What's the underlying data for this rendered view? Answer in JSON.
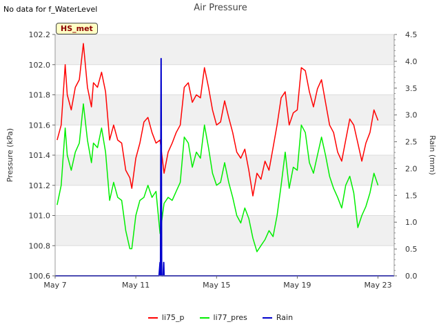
{
  "header": {
    "no_data_text": "No data for f_WaterLevel",
    "badge_text": "HS_met"
  },
  "chart_data": {
    "type": "line",
    "title": "Air Pressure",
    "xlabel": "",
    "ylabel": "Pressure (kPa)",
    "y2label": "Rain (mm)",
    "xlim": [
      7,
      23.8
    ],
    "ylim": [
      100.6,
      102.2
    ],
    "y2lim": [
      0.0,
      4.5
    ],
    "xticks": [
      7,
      11,
      15,
      19,
      23
    ],
    "xtick_labels": [
      "May 7",
      "May 11",
      "May 15",
      "May 19",
      "May 23"
    ],
    "yticks": [
      100.6,
      100.8,
      101.0,
      101.2,
      101.4,
      101.6,
      101.8,
      102.0,
      102.2
    ],
    "ytick_labels": [
      "100.6",
      "100.8",
      "101.0",
      "101.2",
      "101.4",
      "101.6",
      "101.8",
      "102.0",
      "102.2"
    ],
    "y2ticks": [
      0.0,
      0.5,
      1.0,
      1.5,
      2.0,
      2.5,
      3.0,
      3.5,
      4.0,
      4.5
    ],
    "y2tick_labels": [
      "0.0",
      "0.5",
      "1.0",
      "1.5",
      "2.0",
      "2.5",
      "3.0",
      "3.5",
      "4.0",
      "4.5"
    ],
    "legend": [
      "li75_p",
      "li77_pres",
      "Rain"
    ],
    "series": [
      {
        "name": "li75_p",
        "color": "#ff0000",
        "axis": "left",
        "x": [
          7.1,
          7.3,
          7.5,
          7.6,
          7.8,
          8.0,
          8.2,
          8.4,
          8.6,
          8.8,
          8.9,
          9.1,
          9.3,
          9.5,
          9.7,
          9.9,
          10.1,
          10.3,
          10.5,
          10.7,
          10.8,
          11.0,
          11.2,
          11.4,
          11.6,
          11.8,
          12.0,
          12.2,
          12.4,
          12.6,
          12.8,
          13.0,
          13.2,
          13.4,
          13.6,
          13.8,
          14.0,
          14.2,
          14.4,
          14.6,
          14.8,
          15.0,
          15.2,
          15.4,
          15.6,
          15.8,
          16.0,
          16.2,
          16.4,
          16.6,
          16.8,
          17.0,
          17.2,
          17.4,
          17.6,
          17.8,
          18.0,
          18.2,
          18.4,
          18.6,
          18.8,
          19.0,
          19.2,
          19.4,
          19.6,
          19.8,
          20.0,
          20.2,
          20.4,
          20.6,
          20.8,
          21.0,
          21.2,
          21.4,
          21.6,
          21.8,
          22.0,
          22.2,
          22.4,
          22.6,
          22.8,
          23.0
        ],
        "values": [
          101.5,
          101.6,
          102.0,
          101.8,
          101.7,
          101.85,
          101.9,
          102.14,
          101.85,
          101.72,
          101.88,
          101.85,
          101.95,
          101.82,
          101.5,
          101.6,
          101.5,
          101.48,
          101.3,
          101.25,
          101.18,
          101.38,
          101.48,
          101.62,
          101.65,
          101.55,
          101.48,
          101.5,
          101.28,
          101.42,
          101.48,
          101.55,
          101.6,
          101.85,
          101.88,
          101.75,
          101.8,
          101.78,
          101.98,
          101.85,
          101.7,
          101.6,
          101.62,
          101.76,
          101.65,
          101.55,
          101.42,
          101.38,
          101.44,
          101.3,
          101.13,
          101.28,
          101.24,
          101.36,
          101.3,
          101.45,
          101.6,
          101.78,
          101.82,
          101.6,
          101.68,
          101.7,
          101.98,
          101.96,
          101.82,
          101.72,
          101.84,
          101.9,
          101.75,
          101.6,
          101.55,
          101.42,
          101.36,
          101.5,
          101.64,
          101.6,
          101.48,
          101.36,
          101.48,
          101.55,
          101.7,
          101.63
        ]
      },
      {
        "name": "li77_pres",
        "color": "#00ee00",
        "axis": "left",
        "x": [
          7.1,
          7.3,
          7.5,
          7.6,
          7.8,
          8.0,
          8.2,
          8.4,
          8.6,
          8.8,
          8.9,
          9.1,
          9.3,
          9.5,
          9.7,
          9.9,
          10.1,
          10.3,
          10.5,
          10.7,
          10.8,
          11.0,
          11.2,
          11.4,
          11.6,
          11.8,
          12.0,
          12.2,
          12.4,
          12.6,
          12.8,
          13.0,
          13.2,
          13.4,
          13.6,
          13.8,
          14.0,
          14.2,
          14.4,
          14.6,
          14.8,
          15.0,
          15.2,
          15.4,
          15.6,
          15.8,
          16.0,
          16.2,
          16.4,
          16.6,
          16.8,
          17.0,
          17.2,
          17.4,
          17.6,
          17.8,
          18.0,
          18.2,
          18.4,
          18.6,
          18.8,
          19.0,
          19.2,
          19.4,
          19.6,
          19.8,
          20.0,
          20.2,
          20.4,
          20.6,
          20.8,
          21.0,
          21.2,
          21.4,
          21.6,
          21.8,
          22.0,
          22.2,
          22.4,
          22.6,
          22.8,
          23.0
        ],
        "values": [
          101.07,
          101.2,
          101.58,
          101.4,
          101.3,
          101.42,
          101.48,
          101.74,
          101.5,
          101.35,
          101.48,
          101.45,
          101.58,
          101.42,
          101.1,
          101.22,
          101.12,
          101.1,
          100.9,
          100.78,
          100.78,
          101.0,
          101.1,
          101.12,
          101.2,
          101.12,
          101.16,
          100.88,
          101.08,
          101.12,
          101.1,
          101.16,
          101.22,
          101.52,
          101.48,
          101.32,
          101.42,
          101.38,
          101.6,
          101.45,
          101.28,
          101.2,
          101.22,
          101.35,
          101.22,
          101.12,
          101.0,
          100.95,
          101.05,
          100.98,
          100.85,
          100.76,
          100.8,
          100.84,
          100.9,
          100.86,
          101.0,
          101.2,
          101.42,
          101.18,
          101.32,
          101.3,
          101.6,
          101.55,
          101.35,
          101.28,
          101.4,
          101.52,
          101.4,
          101.26,
          101.18,
          101.12,
          101.05,
          101.2,
          101.26,
          101.15,
          100.92,
          101.0,
          101.06,
          101.15,
          101.28,
          101.2
        ]
      },
      {
        "name": "Rain",
        "color": "#0000cc",
        "axis": "right",
        "x": [
          7.0,
          12.15,
          12.2,
          12.22,
          12.25,
          12.28,
          12.3,
          12.35,
          12.38,
          12.4,
          12.42,
          12.45,
          23.8
        ],
        "values": [
          0.0,
          0.0,
          0.25,
          0.0,
          4.05,
          0.0,
          0.0,
          0.0,
          0.25,
          0.0,
          0.0,
          0.0,
          0.0
        ]
      }
    ]
  }
}
